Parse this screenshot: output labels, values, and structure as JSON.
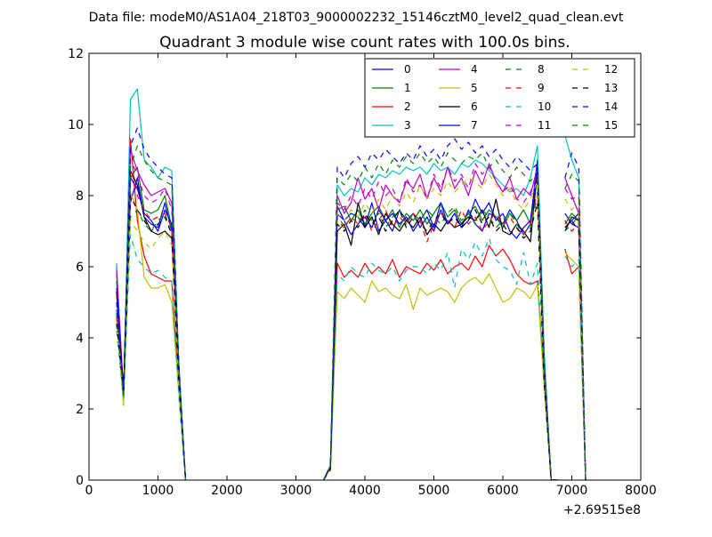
{
  "header": {
    "data_file": "Data file: modeM0/AS1A04_218T03_9000002232_15146cztM0_level2_quad_clean.evt"
  },
  "chart_data": {
    "type": "line",
    "title": "Quadrant 3 module wise count rates with 100.0s bins.",
    "xlabel": "",
    "ylabel": "",
    "x_offset_label": "+2.69515e8",
    "xlim": [
      0,
      8000
    ],
    "ylim": [
      0,
      12
    ],
    "xticks": [
      0,
      1000,
      2000,
      3000,
      4000,
      5000,
      6000,
      7000,
      8000
    ],
    "yticks": [
      0,
      2,
      4,
      6,
      8,
      10,
      12
    ],
    "grid": false,
    "legend_position": "top-right",
    "legend_columns": 4,
    "segments": [
      [
        400,
        500,
        600,
        700,
        800,
        900,
        1000,
        1100,
        1200,
        1300,
        1400
      ],
      [
        3400,
        3500,
        3600,
        3700,
        3800,
        3900,
        4000,
        4100,
        4200,
        4300,
        4400,
        4500,
        4600,
        4700,
        4800,
        4900,
        5000,
        5100,
        5200,
        5300,
        5400,
        5500,
        5600,
        5700,
        5800,
        5900,
        6000,
        6100,
        6200,
        6300,
        6400,
        6500,
        6600,
        6700,
        6800
      ],
      [
        6900,
        7000,
        7100,
        7200
      ]
    ],
    "series": [
      {
        "name": "0",
        "color": "#0000ff",
        "dash": "solid",
        "segments": [
          [
            6.0,
            2.4,
            7.8,
            8.5,
            7.4,
            7.2,
            7.1,
            7.8,
            7.0,
            3.0,
            0
          ],
          [
            0,
            0.4,
            7.7,
            7.3,
            7.5,
            7.4,
            7.1,
            7.8,
            7.0,
            7.3,
            7.0,
            7.6,
            7.3,
            7.5,
            7.1,
            7.4,
            7.0,
            7.6,
            7.2,
            7.5,
            7.1,
            7.6,
            7.2,
            7.0,
            7.5,
            7.4,
            7.2,
            7.6,
            7.3,
            6.9,
            7.2,
            9.0,
            3.0,
            0,
            0
          ],
          [
            7.5,
            7.2,
            7.1,
            0
          ]
        ]
      },
      {
        "name": "1",
        "color": "#008000",
        "dash": "solid",
        "segments": [
          [
            5.6,
            2.3,
            8.5,
            8.8,
            7.6,
            7.5,
            7.6,
            8.0,
            7.1,
            3.0,
            0
          ],
          [
            0,
            0.4,
            7.6,
            7.7,
            7.3,
            7.6,
            7.2,
            7.5,
            7.7,
            7.3,
            7.6,
            7.1,
            7.5,
            7.3,
            7.6,
            7.2,
            7.5,
            7.8,
            7.4,
            7.6,
            7.2,
            7.5,
            7.7,
            7.3,
            7.6,
            7.4,
            7.1,
            7.5,
            7.3,
            7.6,
            7.2,
            8.5,
            3.0,
            0,
            0
          ],
          [
            7.2,
            7.5,
            7.3,
            0
          ]
        ]
      },
      {
        "name": "2",
        "color": "#ff0000",
        "dash": "solid",
        "segments": [
          [
            5.8,
            2.5,
            9.6,
            7.3,
            6.3,
            5.8,
            5.7,
            5.6,
            5.6,
            2.6,
            0
          ],
          [
            0,
            0.4,
            6.1,
            5.7,
            5.9,
            5.7,
            6.1,
            5.8,
            6.0,
            5.8,
            6.2,
            5.7,
            6.0,
            5.9,
            5.8,
            6.1,
            5.9,
            6.2,
            5.8,
            6.0,
            6.1,
            5.9,
            6.3,
            6.0,
            6.6,
            6.3,
            6.5,
            6.2,
            5.8,
            5.6,
            5.5,
            5.6,
            2.8,
            0,
            0
          ],
          [
            6.5,
            5.8,
            6.0,
            0
          ]
        ]
      },
      {
        "name": "3",
        "color": "#00bfbf",
        "dash": "solid",
        "segments": [
          [
            6.1,
            2.1,
            10.7,
            11.0,
            9.0,
            8.8,
            8.5,
            8.8,
            8.7,
            3.4,
            0
          ],
          [
            0,
            0.4,
            8.3,
            8.0,
            8.2,
            8.1,
            8.5,
            8.3,
            8.6,
            8.5,
            8.7,
            8.6,
            8.8,
            8.7,
            8.8,
            8.6,
            8.9,
            8.7,
            8.8,
            8.6,
            8.9,
            8.8,
            9.0,
            8.9,
            8.7,
            8.5,
            8.3,
            8.1,
            8.2,
            8.0,
            8.5,
            9.4,
            3.6,
            0,
            0
          ],
          [
            9.7,
            9.0,
            8.5,
            0
          ]
        ]
      },
      {
        "name": "4",
        "color": "#bf00bf",
        "dash": "solid",
        "segments": [
          [
            5.9,
            2.3,
            9.3,
            8.7,
            8.3,
            8.0,
            8.1,
            8.2,
            7.8,
            3.2,
            0
          ],
          [
            0,
            0.4,
            8.0,
            7.5,
            7.8,
            8.5,
            7.9,
            8.2,
            7.6,
            8.3,
            8.0,
            7.8,
            8.4,
            8.2,
            8.6,
            7.9,
            8.5,
            8.1,
            8.8,
            8.2,
            8.5,
            8.0,
            8.7,
            8.3,
            8.9,
            8.4,
            8.1,
            8.5,
            7.9,
            8.2,
            8.0,
            8.8,
            3.2,
            0,
            0
          ],
          [
            8.5,
            8.0,
            7.5,
            0
          ]
        ]
      },
      {
        "name": "5",
        "color": "#bfbf00",
        "dash": "solid",
        "segments": [
          [
            5.2,
            2.2,
            8.1,
            7.6,
            5.7,
            5.4,
            5.4,
            5.5,
            5.0,
            2.5,
            0
          ],
          [
            0,
            0.3,
            5.3,
            5.1,
            5.4,
            5.2,
            5.0,
            5.6,
            5.3,
            5.4,
            5.2,
            5.1,
            5.5,
            4.8,
            5.4,
            5.2,
            5.3,
            5.4,
            5.3,
            5.0,
            5.4,
            5.6,
            5.7,
            5.5,
            5.8,
            5.4,
            5.0,
            5.1,
            5.4,
            5.3,
            5.1,
            5.5,
            2.6,
            0,
            0
          ],
          [
            6.4,
            6.2,
            6.0,
            0
          ]
        ]
      },
      {
        "name": "6",
        "color": "#000000",
        "dash": "solid",
        "segments": [
          [
            5.3,
            2.4,
            8.7,
            8.3,
            7.4,
            7.0,
            6.9,
            7.0,
            6.8,
            2.9,
            0
          ],
          [
            0,
            0.4,
            7.0,
            7.2,
            6.6,
            7.8,
            7.1,
            7.4,
            6.9,
            7.5,
            7.2,
            7.0,
            7.3,
            7.1,
            7.4,
            6.9,
            7.2,
            7.0,
            7.3,
            7.1,
            7.2,
            7.4,
            7.3,
            7.6,
            7.1,
            7.9,
            7.0,
            6.9,
            7.2,
            7.0,
            6.7,
            8.7,
            3.2,
            0,
            0
          ],
          [
            7.0,
            7.4,
            7.3,
            0
          ]
        ]
      },
      {
        "name": "7",
        "color": "#0000ff",
        "dash": "solid",
        "segments": [
          [
            5.4,
            2.5,
            8.5,
            8.2,
            7.5,
            7.3,
            7.0,
            7.6,
            7.2,
            3.0,
            0
          ],
          [
            0,
            0.4,
            7.5,
            7.3,
            6.9,
            7.2,
            7.4,
            7.1,
            7.6,
            7.3,
            7.5,
            7.2,
            7.4,
            7.0,
            7.3,
            7.6,
            7.1,
            7.8,
            7.2,
            7.5,
            7.1,
            7.3,
            7.9,
            7.5,
            7.8,
            7.3,
            7.5,
            7.0,
            6.8,
            7.1,
            7.3,
            8.8,
            3.1,
            0,
            0
          ],
          [
            7.1,
            7.3,
            7.5,
            0
          ]
        ]
      },
      {
        "name": "8",
        "color": "#008000",
        "dash": "dashed",
        "segments": [
          [
            4.7,
            2.4,
            7.4,
            7.6,
            7.2,
            7.0,
            7.3,
            7.5,
            6.9,
            2.9,
            0
          ],
          [
            0,
            0.3,
            7.5,
            7.1,
            7.4,
            7.2,
            7.6,
            7.3,
            7.5,
            7.1,
            7.4,
            7.6,
            7.2,
            7.5,
            7.3,
            7.6,
            7.4,
            7.2,
            7.5,
            7.7,
            7.3,
            7.5,
            7.2,
            7.6,
            7.4,
            7.1,
            7.3,
            7.5,
            7.2,
            6.9,
            7.1,
            8.0,
            2.9,
            0,
            0
          ],
          [
            7.0,
            7.2,
            7.4,
            0
          ]
        ]
      },
      {
        "name": "9",
        "color": "#ff0000",
        "dash": "dashed",
        "segments": [
          [
            4.6,
            2.3,
            8.8,
            8.0,
            7.6,
            7.3,
            7.4,
            7.5,
            7.1,
            2.9,
            0
          ],
          [
            0,
            0.3,
            7.3,
            7.1,
            7.4,
            7.2,
            7.5,
            7.0,
            7.3,
            7.6,
            7.1,
            7.4,
            7.2,
            7.5,
            7.3,
            6.7,
            7.2,
            7.5,
            7.3,
            7.1,
            7.6,
            7.2,
            7.4,
            7.0,
            7.3,
            7.5,
            7.2,
            7.4,
            7.1,
            6.9,
            7.2,
            8.1,
            2.8,
            0,
            0
          ],
          [
            7.3,
            7.0,
            7.2,
            0
          ]
        ]
      },
      {
        "name": "10",
        "color": "#00bfbf",
        "dash": "dashed",
        "segments": [
          [
            4.2,
            2.2,
            6.9,
            6.2,
            6.0,
            5.8,
            5.9,
            5.7,
            5.6,
            2.4,
            0
          ],
          [
            0,
            0.3,
            5.8,
            5.6,
            6.0,
            5.8,
            5.7,
            6.1,
            5.9,
            5.8,
            6.0,
            5.6,
            5.9,
            6.0,
            6.0,
            5.8,
            6.1,
            5.9,
            6.4,
            5.4,
            6.5,
            6.2,
            6.7,
            6.3,
            6.8,
            6.2,
            6.0,
            5.9,
            5.5,
            6.4,
            5.5,
            6.1,
            2.7,
            0,
            0
          ],
          [
            6.3,
            6.0,
            6.2,
            0
          ]
        ]
      },
      {
        "name": "11",
        "color": "#bf00bf",
        "dash": "dashed",
        "segments": [
          [
            4.8,
            2.5,
            9.0,
            8.6,
            8.0,
            7.8,
            7.9,
            8.2,
            7.6,
            3.0,
            0
          ],
          [
            0,
            0.4,
            7.8,
            7.6,
            8.0,
            7.7,
            8.2,
            7.9,
            8.4,
            8.0,
            8.2,
            7.8,
            8.5,
            8.1,
            8.3,
            7.9,
            8.6,
            8.2,
            8.8,
            8.4,
            8.6,
            8.2,
            8.9,
            8.6,
            8.8,
            8.4,
            8.1,
            8.3,
            7.9,
            7.8,
            8.1,
            8.6,
            3.0,
            0,
            0
          ],
          [
            8.2,
            7.9,
            8.0,
            0
          ]
        ]
      },
      {
        "name": "12",
        "color": "#bfbf00",
        "dash": "dashed",
        "segments": [
          [
            4.5,
            2.1,
            7.3,
            7.0,
            6.7,
            6.5,
            6.8,
            7.0,
            6.6,
            2.8,
            0
          ],
          [
            0,
            0.3,
            7.5,
            7.3,
            7.6,
            7.4,
            7.8,
            7.5,
            7.9,
            7.6,
            8.0,
            7.7,
            8.1,
            7.8,
            8.3,
            7.9,
            8.2,
            8.0,
            8.4,
            8.1,
            8.3,
            8.5,
            8.4,
            8.2,
            8.6,
            8.3,
            8.0,
            8.2,
            7.8,
            7.6,
            7.9,
            8.4,
            2.9,
            0,
            0
          ],
          [
            7.9,
            7.6,
            7.8,
            0
          ]
        ]
      },
      {
        "name": "13",
        "color": "#000000",
        "dash": "dashed",
        "segments": [
          [
            4.4,
            2.4,
            8.0,
            7.6,
            7.3,
            7.0,
            7.2,
            7.4,
            6.9,
            2.8,
            0
          ],
          [
            0,
            0.3,
            7.2,
            7.0,
            7.3,
            7.1,
            7.5,
            7.2,
            7.4,
            7.0,
            7.3,
            7.6,
            7.1,
            7.4,
            7.2,
            7.0,
            7.3,
            7.5,
            7.2,
            7.4,
            7.1,
            7.3,
            7.6,
            7.2,
            7.4,
            7.0,
            7.2,
            6.9,
            7.1,
            6.8,
            7.0,
            7.8,
            2.7,
            0,
            0
          ],
          [
            7.1,
            7.3,
            7.0,
            0
          ]
        ]
      },
      {
        "name": "14",
        "color": "#0000ff",
        "dash": "dashed",
        "segments": [
          [
            5.0,
            2.6,
            9.4,
            9.9,
            9.3,
            9.0,
            8.8,
            8.6,
            8.5,
            3.3,
            0
          ],
          [
            0,
            0.4,
            8.8,
            8.5,
            8.9,
            9.1,
            8.8,
            9.2,
            9.0,
            9.3,
            9.1,
            8.9,
            9.2,
            9.0,
            9.4,
            9.1,
            9.3,
            9.0,
            9.4,
            9.6,
            9.3,
            9.5,
            9.2,
            9.4,
            9.1,
            9.3,
            9.0,
            8.8,
            9.1,
            8.9,
            8.7,
            8.9,
            3.2,
            0,
            0
          ],
          [
            8.5,
            9.2,
            8.8,
            0
          ]
        ]
      },
      {
        "name": "15",
        "color": "#008000",
        "dash": "dashed",
        "segments": [
          [
            4.6,
            2.3,
            8.8,
            9.4,
            9.0,
            8.7,
            8.5,
            8.4,
            8.3,
            3.1,
            0
          ],
          [
            0,
            0.4,
            8.5,
            8.3,
            8.6,
            8.4,
            8.8,
            8.5,
            8.9,
            8.6,
            9.0,
            8.8,
            9.1,
            8.9,
            9.2,
            8.9,
            9.1,
            8.8,
            9.2,
            9.0,
            8.9,
            9.1,
            9.0,
            9.2,
            8.8,
            9.0,
            8.7,
            8.5,
            8.8,
            8.6,
            8.4,
            8.7,
            3.1,
            0,
            0
          ],
          [
            8.2,
            8.6,
            8.4,
            0
          ]
        ]
      }
    ]
  }
}
